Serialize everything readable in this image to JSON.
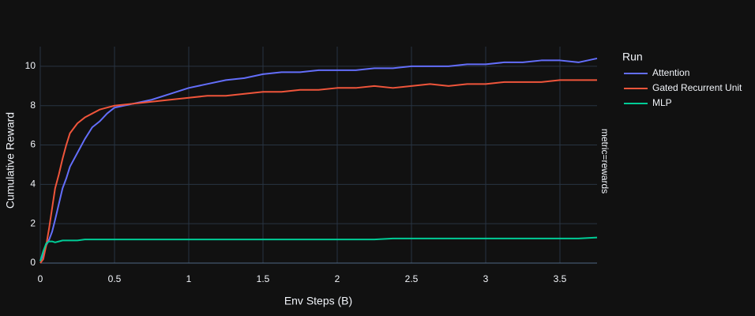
{
  "chart_data": {
    "type": "line",
    "x_label": "Env Steps (B)",
    "y_label": "Cumulative Reward",
    "legend_title": "Run",
    "facet_label": "metric=rewards",
    "x": [
      0,
      0.02,
      0.04,
      0.06,
      0.08,
      0.1,
      0.125,
      0.15,
      0.175,
      0.2,
      0.25,
      0.3,
      0.35,
      0.4,
      0.45,
      0.5,
      0.625,
      0.75,
      0.875,
      1,
      1.125,
      1.25,
      1.375,
      1.5,
      1.625,
      1.75,
      1.875,
      2,
      2.125,
      2.25,
      2.375,
      2.5,
      2.625,
      2.75,
      2.875,
      3,
      3.125,
      3.25,
      3.375,
      3.5,
      3.625,
      3.75
    ],
    "series": [
      {
        "name": "Attention",
        "color": "#636efa",
        "values": [
          0.1,
          0.4,
          0.9,
          1.2,
          1.6,
          2.2,
          3.0,
          3.8,
          4.3,
          4.9,
          5.6,
          6.3,
          6.9,
          7.2,
          7.6,
          7.9,
          8.1,
          8.3,
          8.6,
          8.9,
          9.1,
          9.3,
          9.4,
          9.6,
          9.7,
          9.7,
          9.8,
          9.8,
          9.8,
          9.9,
          9.9,
          10.0,
          10.0,
          10.0,
          10.1,
          10.1,
          10.2,
          10.2,
          10.3,
          10.3,
          10.2,
          10.4
        ]
      },
      {
        "name": "Gated Recurrent Unit",
        "color": "#ef553b",
        "values": [
          0.0,
          0.2,
          0.9,
          1.8,
          2.8,
          3.8,
          4.5,
          5.3,
          6.0,
          6.6,
          7.1,
          7.4,
          7.6,
          7.8,
          7.9,
          8.0,
          8.1,
          8.2,
          8.3,
          8.4,
          8.5,
          8.5,
          8.6,
          8.7,
          8.7,
          8.8,
          8.8,
          8.9,
          8.9,
          9.0,
          8.9,
          9.0,
          9.1,
          9.0,
          9.1,
          9.1,
          9.2,
          9.2,
          9.2,
          9.3,
          9.3,
          9.3
        ]
      },
      {
        "name": "MLP",
        "color": "#00cc96",
        "values": [
          0.1,
          0.6,
          1.0,
          1.1,
          1.1,
          1.05,
          1.1,
          1.15,
          1.15,
          1.15,
          1.15,
          1.2,
          1.2,
          1.2,
          1.2,
          1.2,
          1.2,
          1.2,
          1.2,
          1.2,
          1.2,
          1.2,
          1.2,
          1.2,
          1.2,
          1.2,
          1.2,
          1.2,
          1.2,
          1.2,
          1.25,
          1.25,
          1.25,
          1.25,
          1.25,
          1.25,
          1.25,
          1.25,
          1.25,
          1.25,
          1.25,
          1.3
        ]
      }
    ],
    "xlim": [
      0,
      3.75
    ],
    "ylim": [
      0,
      11
    ],
    "xticks": [
      0,
      0.5,
      1,
      1.5,
      2,
      2.5,
      3,
      3.5
    ],
    "yticks": [
      0,
      2,
      4,
      6,
      8,
      10
    ],
    "grid": true
  }
}
